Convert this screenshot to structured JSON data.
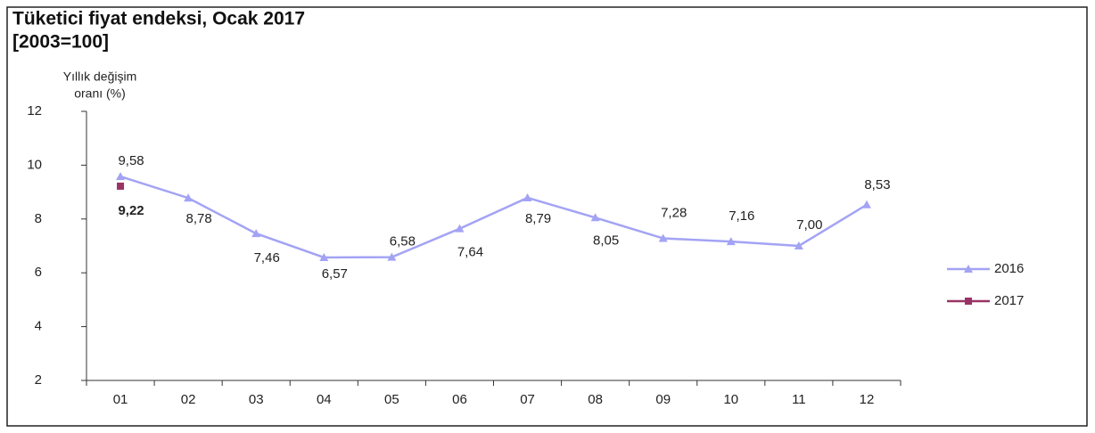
{
  "chart_data": {
    "type": "line",
    "title": "Tüketici fiyat endeksi, Ocak 2017",
    "subtitle": "[2003=100]",
    "ylabel": [
      "Yıllık değişim",
      "oranı (%)"
    ],
    "categories": [
      "01",
      "02",
      "03",
      "04",
      "05",
      "06",
      "07",
      "08",
      "09",
      "10",
      "11",
      "12"
    ],
    "series": [
      {
        "name": "2016",
        "color": "#a3a3f5",
        "marker": "triangle",
        "values": [
          9.58,
          8.78,
          7.46,
          6.57,
          6.58,
          7.64,
          8.79,
          8.05,
          7.28,
          7.16,
          7.0,
          8.53
        ],
        "value_labels": [
          "9,58",
          "8,78",
          "7,46",
          "6,57",
          "6,58",
          "7,64",
          "8,79",
          "8,05",
          "7,28",
          "7,16",
          "7,00",
          "8,53"
        ]
      },
      {
        "name": "2017",
        "color": "#993366",
        "marker": "square",
        "values": [
          9.22,
          null,
          null,
          null,
          null,
          null,
          null,
          null,
          null,
          null,
          null,
          null
        ],
        "value_labels": [
          "9,22",
          null,
          null,
          null,
          null,
          null,
          null,
          null,
          null,
          null,
          null,
          null
        ]
      }
    ],
    "ylim": [
      2,
      12
    ],
    "yticks": [
      2,
      4,
      6,
      8,
      10,
      12
    ],
    "grid": false,
    "legend": "right"
  }
}
